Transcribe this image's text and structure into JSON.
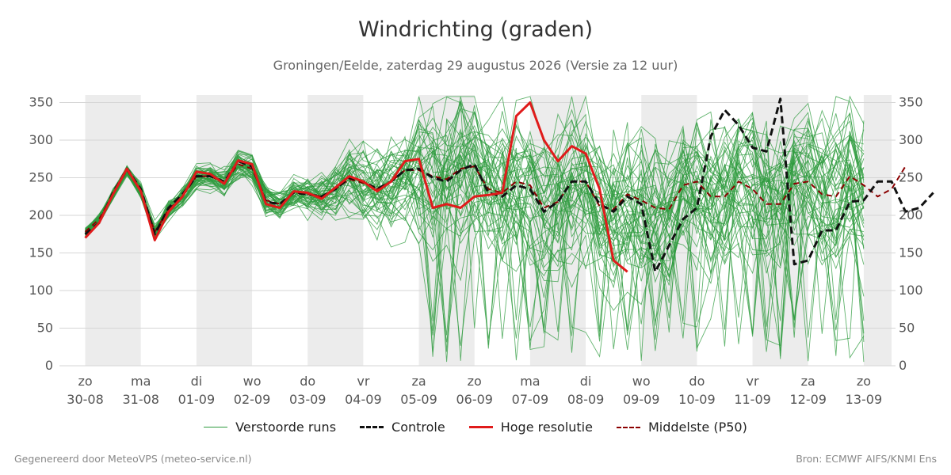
{
  "title": "Windrichting (graden)",
  "subtitle": "Groningen/Eelde, zaterdag 29 augustus 2026 (Versie za 12 uur)",
  "footer": {
    "left": "Gegenereerd door MeteoVPS (meteo-service.nl)",
    "right": "Bron: ECMWF AIFS/KNMI Ens"
  },
  "legend": [
    {
      "label": "Verstoorde runs",
      "color": "#2e9b3e",
      "style": "thin"
    },
    {
      "label": "Controle",
      "color": "#111111",
      "style": "dashed"
    },
    {
      "label": "Hoge resolutie",
      "color": "#e01b1b",
      "style": "solid"
    },
    {
      "label": "Middelste (P50)",
      "color": "#8b0000",
      "style": "dashed"
    }
  ],
  "chart_data": {
    "type": "line",
    "ylim": [
      0,
      360
    ],
    "yticks": [
      0,
      50,
      100,
      150,
      200,
      250,
      300,
      350
    ],
    "x_range_days": [
      -0.25,
      14.5
    ],
    "step_hours": 6,
    "x_ticks": [
      {
        "day": "zo",
        "date": "30-08"
      },
      {
        "day": "ma",
        "date": "31-08"
      },
      {
        "day": "di",
        "date": "01-09"
      },
      {
        "day": "wo",
        "date": "02-09"
      },
      {
        "day": "do",
        "date": "03-09"
      },
      {
        "day": "vr",
        "date": "04-09"
      },
      {
        "day": "za",
        "date": "05-09"
      },
      {
        "day": "zo",
        "date": "06-09"
      },
      {
        "day": "ma",
        "date": "07-09"
      },
      {
        "day": "di",
        "date": "08-09"
      },
      {
        "day": "wo",
        "date": "09-09"
      },
      {
        "day": "do",
        "date": "10-09"
      },
      {
        "day": "vr",
        "date": "11-09"
      },
      {
        "day": "za",
        "date": "12-09"
      },
      {
        "day": "zo",
        "date": "13-09"
      }
    ],
    "shaded_days": [
      0,
      2,
      4,
      6,
      8,
      10,
      12,
      14
    ],
    "grid": true,
    "series": [
      {
        "name": "Hoge resolutie",
        "color": "#e01b1b",
        "values": [
          170,
          190,
          228,
          262,
          232,
          167,
          205,
          225,
          258,
          255,
          242,
          273,
          268,
          215,
          210,
          232,
          230,
          222,
          237,
          252,
          245,
          232,
          245,
          272,
          275,
          210,
          215,
          210,
          225,
          227,
          230,
          332,
          350,
          300,
          272,
          292,
          282,
          235,
          140,
          125
        ]
      },
      {
        "name": "Controle",
        "color": "#111111",
        "values": [
          175,
          190,
          230,
          262,
          235,
          175,
          210,
          228,
          252,
          252,
          245,
          272,
          265,
          218,
          215,
          230,
          228,
          225,
          235,
          250,
          245,
          235,
          245,
          260,
          262,
          250,
          245,
          260,
          268,
          230,
          225,
          240,
          235,
          205,
          218,
          245,
          245,
          215,
          205,
          225,
          215,
          125,
          160,
          195,
          210,
          305,
          340,
          320,
          290,
          285,
          355,
          135,
          140,
          180,
          180,
          218,
          220,
          245,
          245,
          205,
          210,
          230
        ]
      },
      {
        "name": "Middelste (P50)",
        "color": "#8b0000",
        "values": [
          178,
          195,
          228,
          260,
          232,
          178,
          208,
          225,
          252,
          252,
          243,
          268,
          262,
          220,
          215,
          230,
          228,
          225,
          235,
          248,
          243,
          235,
          245,
          260,
          260,
          252,
          248,
          262,
          265,
          235,
          230,
          245,
          240,
          210,
          218,
          245,
          245,
          212,
          208,
          228,
          220,
          210,
          208,
          240,
          245,
          225,
          225,
          245,
          235,
          215,
          215,
          242,
          245,
          228,
          225,
          252,
          240,
          225,
          235,
          265
        ]
      }
    ]
  }
}
